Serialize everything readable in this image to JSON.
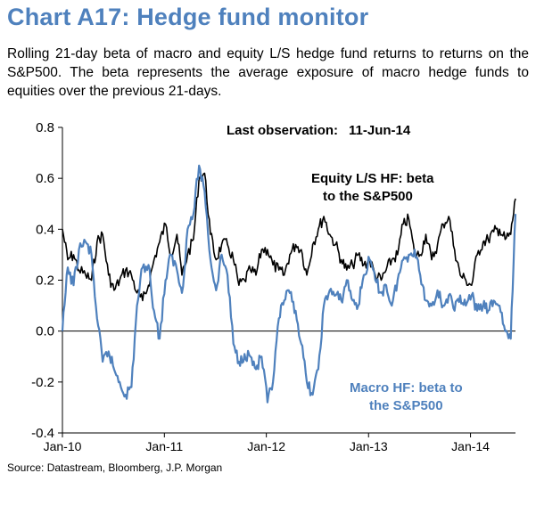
{
  "header": {
    "title": "Chart A17: Hedge fund monitor",
    "subtitle": "Rolling 21-day beta of macro and equity L/S hedge fund returns to returns on the S&P500. The beta represents the average exposure of macro hedge funds to equities over the previous 21-days."
  },
  "footer": {
    "source": "Source: Datastream, Bloomberg, J.P. Morgan"
  },
  "colors": {
    "equity": "#000000",
    "macro": "#4f81bd",
    "title": "#4f81bd"
  },
  "chart_data": {
    "type": "line",
    "ylim": [
      -0.4,
      0.8
    ],
    "yticks": [
      -0.4,
      -0.2,
      0.0,
      0.2,
      0.4,
      0.6,
      0.8
    ],
    "ytick_labels": [
      "-0.4",
      "-0.2",
      "0.0",
      "0.2",
      "0.4",
      "0.6",
      "0.8"
    ],
    "xlim": [
      "2010-01-01",
      "2014-06-11"
    ],
    "xticks": [
      "2010-01-01",
      "2011-01-01",
      "2012-01-01",
      "2013-01-01",
      "2014-01-01"
    ],
    "xtick_labels": [
      "Jan-10",
      "Jan-11",
      "Jan-12",
      "Jan-13",
      "Jan-14"
    ],
    "annotations": {
      "last_observation_label": "Last observation:",
      "last_observation_date": "11-Jun-14",
      "equity_label_line1": "Equity L/S HF: beta",
      "equity_label_line2": "to the S&P500",
      "macro_label_line1": "Macro HF: beta to",
      "macro_label_line2": "the S&P500"
    },
    "series": [
      {
        "name": "Equity L/S HF: beta to the S&P500",
        "color": "#000000",
        "x": [
          "2010-01-01",
          "2010-01-20",
          "2010-02-10",
          "2010-03-01",
          "2010-03-25",
          "2010-04-15",
          "2010-05-05",
          "2010-05-25",
          "2010-06-15",
          "2010-07-05",
          "2010-07-25",
          "2010-08-15",
          "2010-09-05",
          "2010-09-25",
          "2010-10-15",
          "2010-11-05",
          "2010-11-25",
          "2010-12-15",
          "2011-01-05",
          "2011-01-25",
          "2011-02-15",
          "2011-03-05",
          "2011-03-25",
          "2011-04-15",
          "2011-05-05",
          "2011-05-25",
          "2011-06-15",
          "2011-07-05",
          "2011-07-25",
          "2011-08-15",
          "2011-09-05",
          "2011-09-25",
          "2011-10-15",
          "2011-11-05",
          "2011-11-25",
          "2011-12-15",
          "2012-01-05",
          "2012-01-25",
          "2012-02-15",
          "2012-03-05",
          "2012-03-25",
          "2012-04-15",
          "2012-05-05",
          "2012-05-25",
          "2012-06-15",
          "2012-07-05",
          "2012-07-25",
          "2012-08-15",
          "2012-09-05",
          "2012-09-25",
          "2012-10-15",
          "2012-11-05",
          "2012-11-25",
          "2012-12-15",
          "2013-01-05",
          "2013-01-25",
          "2013-02-15",
          "2013-03-05",
          "2013-03-25",
          "2013-04-15",
          "2013-05-05",
          "2013-05-25",
          "2013-06-15",
          "2013-07-05",
          "2013-07-25",
          "2013-08-15",
          "2013-09-05",
          "2013-09-25",
          "2013-10-15",
          "2013-11-05",
          "2013-11-25",
          "2013-12-15",
          "2014-01-05",
          "2014-01-25",
          "2014-02-15",
          "2014-03-05",
          "2014-03-25",
          "2014-04-15",
          "2014-05-05",
          "2014-05-25",
          "2014-06-11"
        ],
        "values": [
          0.4,
          0.28,
          0.3,
          0.24,
          0.22,
          0.2,
          0.35,
          0.38,
          0.22,
          0.16,
          0.2,
          0.24,
          0.22,
          0.15,
          0.12,
          0.18,
          0.28,
          0.35,
          0.42,
          0.3,
          0.38,
          0.22,
          0.3,
          0.36,
          0.6,
          0.62,
          0.38,
          0.28,
          0.34,
          0.34,
          0.28,
          0.18,
          0.2,
          0.24,
          0.22,
          0.32,
          0.32,
          0.26,
          0.24,
          0.22,
          0.3,
          0.34,
          0.32,
          0.22,
          0.34,
          0.4,
          0.45,
          0.38,
          0.34,
          0.28,
          0.24,
          0.26,
          0.3,
          0.26,
          0.28,
          0.22,
          0.2,
          0.24,
          0.28,
          0.3,
          0.42,
          0.44,
          0.3,
          0.3,
          0.38,
          0.28,
          0.34,
          0.42,
          0.45,
          0.32,
          0.22,
          0.2,
          0.18,
          0.3,
          0.35,
          0.36,
          0.39,
          0.4,
          0.36,
          0.38,
          0.52
        ]
      },
      {
        "name": "Macro HF: beta to the S&P500",
        "color": "#4f81bd",
        "x": [
          "2010-01-01",
          "2010-01-20",
          "2010-02-10",
          "2010-03-01",
          "2010-03-25",
          "2010-04-15",
          "2010-05-05",
          "2010-05-25",
          "2010-06-15",
          "2010-07-05",
          "2010-07-25",
          "2010-08-15",
          "2010-09-05",
          "2010-09-25",
          "2010-10-15",
          "2010-11-05",
          "2010-11-25",
          "2010-12-15",
          "2011-01-05",
          "2011-01-25",
          "2011-02-15",
          "2011-03-05",
          "2011-03-25",
          "2011-04-15",
          "2011-05-05",
          "2011-05-25",
          "2011-06-15",
          "2011-07-05",
          "2011-07-25",
          "2011-08-15",
          "2011-09-05",
          "2011-09-25",
          "2011-10-15",
          "2011-11-05",
          "2011-11-25",
          "2011-12-15",
          "2012-01-05",
          "2012-01-25",
          "2012-02-15",
          "2012-03-05",
          "2012-03-25",
          "2012-04-15",
          "2012-05-05",
          "2012-05-25",
          "2012-06-15",
          "2012-07-05",
          "2012-07-25",
          "2012-08-15",
          "2012-09-05",
          "2012-09-25",
          "2012-10-15",
          "2012-11-05",
          "2012-11-25",
          "2012-12-15",
          "2013-01-05",
          "2013-01-25",
          "2013-02-15",
          "2013-03-05",
          "2013-03-25",
          "2013-04-15",
          "2013-05-05",
          "2013-05-25",
          "2013-06-15",
          "2013-07-05",
          "2013-07-25",
          "2013-08-15",
          "2013-09-05",
          "2013-09-25",
          "2013-10-15",
          "2013-11-05",
          "2013-11-25",
          "2013-12-15",
          "2014-01-05",
          "2014-01-25",
          "2014-02-15",
          "2014-03-05",
          "2014-03-25",
          "2014-04-15",
          "2014-05-05",
          "2014-05-25",
          "2014-06-11"
        ],
        "values": [
          0.0,
          0.25,
          0.18,
          0.32,
          0.35,
          0.3,
          0.05,
          -0.12,
          -0.08,
          -0.15,
          -0.2,
          -0.25,
          -0.22,
          0.1,
          0.25,
          0.26,
          0.08,
          -0.03,
          0.2,
          0.3,
          0.24,
          0.15,
          0.4,
          0.46,
          0.65,
          0.55,
          0.28,
          0.16,
          0.3,
          0.22,
          -0.05,
          -0.12,
          -0.09,
          -0.1,
          -0.15,
          -0.1,
          -0.28,
          -0.2,
          0.05,
          0.12,
          0.15,
          0.08,
          -0.05,
          -0.2,
          -0.25,
          -0.15,
          0.1,
          0.16,
          0.14,
          0.12,
          0.2,
          0.12,
          0.1,
          0.22,
          0.28,
          0.2,
          0.15,
          0.18,
          0.1,
          0.2,
          0.28,
          0.3,
          0.32,
          0.22,
          0.12,
          0.1,
          0.16,
          0.1,
          0.14,
          0.08,
          0.14,
          0.1,
          0.14,
          0.08,
          0.1,
          0.08,
          0.12,
          0.1,
          0.0,
          -0.03,
          0.46
        ]
      }
    ]
  }
}
